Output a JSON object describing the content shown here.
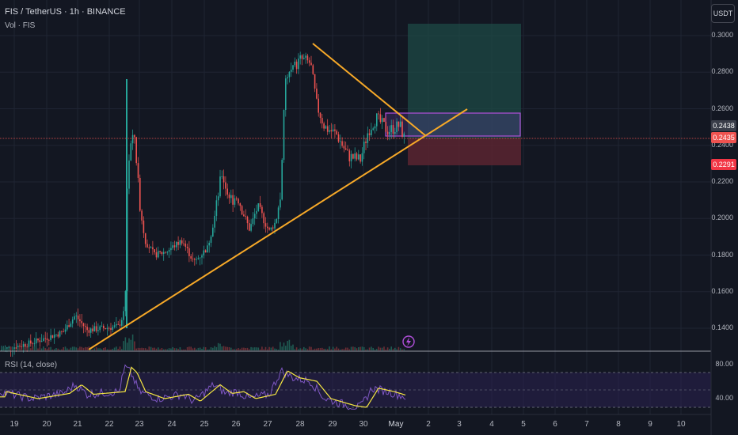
{
  "header": {
    "title": "FIS / TetherUS · 1h · BINANCE",
    "volume_label": "Vol · FIS"
  },
  "toolbar": {
    "currency": "USDT"
  },
  "price_axis": {
    "ticks": [
      "0.3000",
      "0.2800",
      "0.2600",
      "0.2400",
      "0.2200",
      "0.2000",
      "0.1800",
      "0.1600",
      "0.1400"
    ]
  },
  "price_tags": {
    "last_close": "0.2438",
    "current": "0.2435",
    "stop": "0.2291"
  },
  "rsi": {
    "label": "RSI (14, close)",
    "upper": "80.00",
    "lower": "40.00"
  },
  "time_axis": {
    "ticks": [
      "19",
      "20",
      "21",
      "22",
      "23",
      "24",
      "25",
      "26",
      "27",
      "28",
      "29",
      "30",
      "May",
      "2",
      "3",
      "4",
      "5",
      "6",
      "7",
      "8",
      "9",
      "10"
    ]
  },
  "colors": {
    "up": "#26a69a",
    "down": "#ef5350",
    "trendline": "#f7a928",
    "rsi_line": "#7e57c2",
    "rsi_ma": "#f5e642",
    "box": "#9c27b0"
  },
  "chart_data": {
    "type": "candlestick",
    "x": [
      "19",
      "20",
      "21",
      "22",
      "23",
      "24",
      "25",
      "26",
      "27",
      "28",
      "29",
      "30",
      "May",
      "2",
      "3",
      "4",
      "5",
      "6",
      "7",
      "8",
      "9",
      "10"
    ],
    "price_range": [
      0.13,
      0.31
    ],
    "close_path": [
      0.128,
      0.132,
      0.136,
      0.142,
      0.148,
      0.23,
      0.18,
      0.176,
      0.174,
      0.22,
      0.21,
      0.19,
      0.196,
      0.285,
      0.262,
      0.244,
      0.232,
      0.252,
      0.244
    ],
    "rsi_range": [
      20,
      100
    ],
    "rsi_levels": [
      80,
      40
    ],
    "trade_box": {
      "entry": 0.2435,
      "target": 0.305,
      "stop": 0.2291
    }
  }
}
